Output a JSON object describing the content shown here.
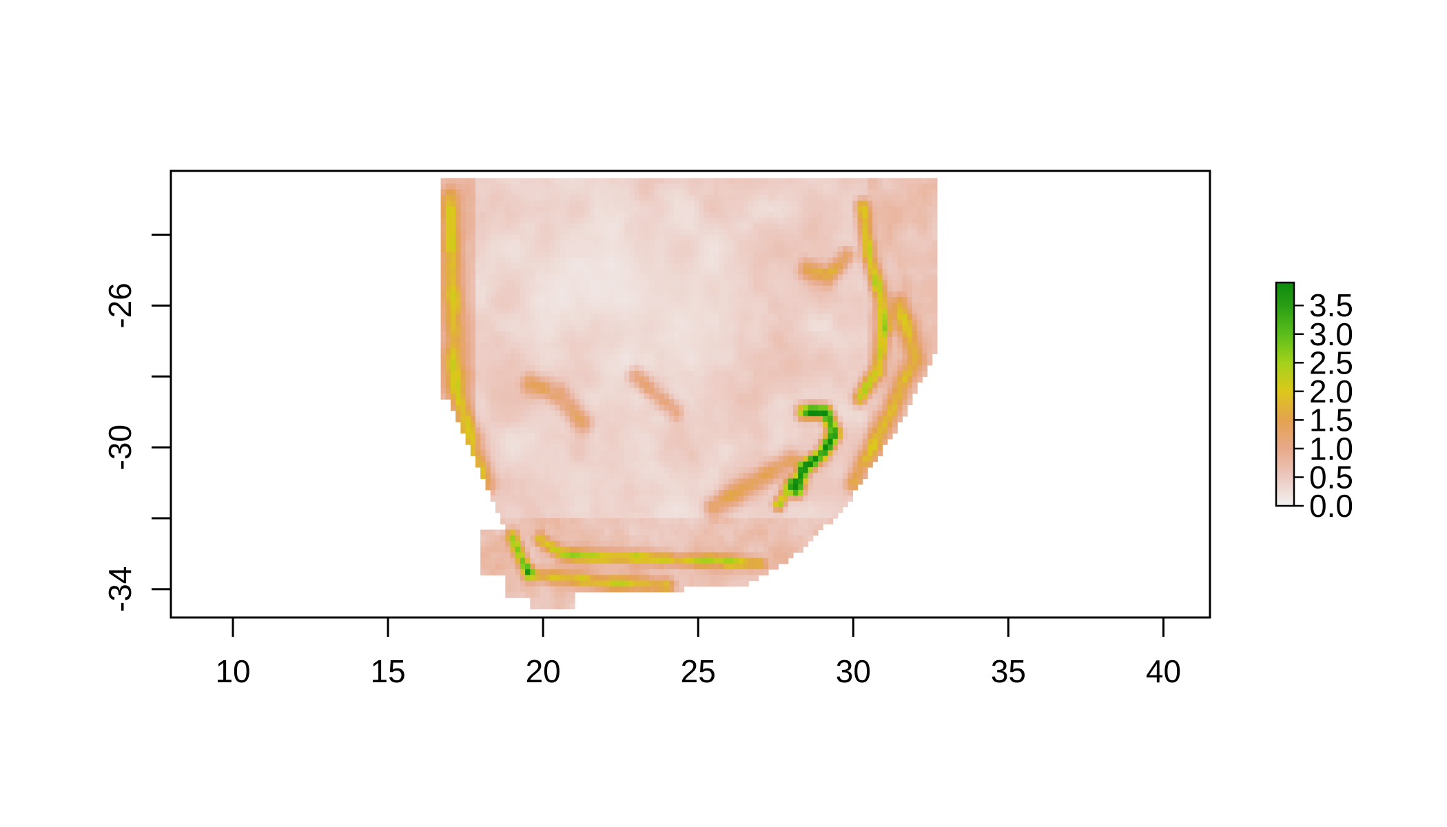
{
  "chart_data": {
    "type": "heatmap",
    "title": "",
    "xlabel": "",
    "ylabel": "",
    "xlim": [
      8,
      41.5
    ],
    "ylim": [
      -34.8,
      -22.2
    ],
    "x_ticks": [
      10,
      15,
      20,
      25,
      30,
      35,
      40
    ],
    "x_tick_labels": [
      "10",
      "15",
      "20",
      "25",
      "30",
      "35",
      "40"
    ],
    "y_ticks": [
      -24,
      -26,
      -28,
      -30,
      -32,
      -34
    ],
    "y_tick_labels": [
      "",
      "-26",
      "",
      "-30",
      "",
      "-34"
    ],
    "raster_extent": {
      "lon": [
        16.7,
        32.7
      ],
      "lat": [
        -34.6,
        -22.4
      ]
    },
    "color_scale": {
      "min": 0.0,
      "max": 3.9,
      "stops": [
        {
          "value": 0.0,
          "color": "#f2f2f2"
        },
        {
          "value": 0.5,
          "color": "#ecc9c0"
        },
        {
          "value": 1.0,
          "color": "#e8a98a"
        },
        {
          "value": 1.5,
          "color": "#e4a24f"
        },
        {
          "value": 2.0,
          "color": "#dcc81b"
        },
        {
          "value": 2.5,
          "color": "#a3d11b"
        },
        {
          "value": 3.0,
          "color": "#5bbd1b"
        },
        {
          "value": 3.5,
          "color": "#2a9e14"
        },
        {
          "value": 3.9,
          "color": "#0d8a0d"
        }
      ]
    },
    "legend": {
      "position": "right",
      "ticks": [
        3.5,
        3.0,
        2.5,
        2.0,
        1.5,
        1.0,
        0.5,
        0.0
      ],
      "tick_labels": [
        "3.5",
        "3.0",
        "2.5",
        "2.0",
        "1.5",
        "1.0",
        "0.5",
        "0.0"
      ]
    }
  }
}
